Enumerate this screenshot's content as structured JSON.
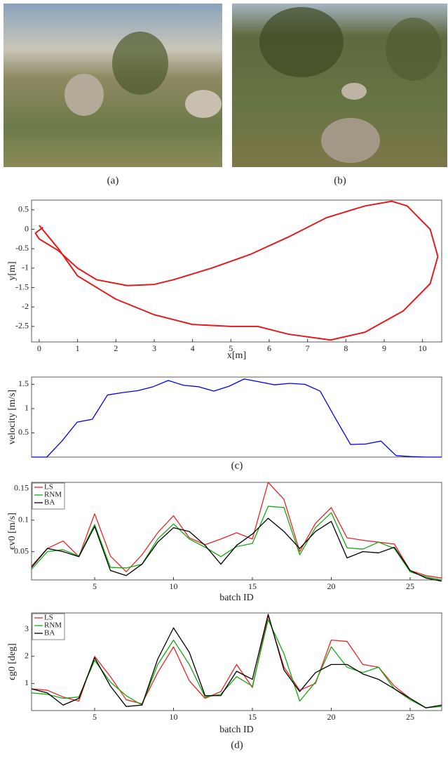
{
  "figure": {
    "captions": [
      "(a)",
      "(b)",
      "(c)",
      "(d)"
    ]
  },
  "chart_data": [
    {
      "type": "line",
      "xlabel": "x[m]",
      "ylabel": "y[m]",
      "x": [
        0,
        0.5,
        1,
        2,
        3,
        4,
        5,
        5.7,
        6.5,
        7.6,
        8.5,
        9.5,
        10.2,
        10.4,
        10.2,
        9.6,
        9.2,
        8.5,
        7.5,
        6.5,
        5.5,
        4.5,
        3.5,
        3,
        2.3,
        1.5,
        1,
        0.5,
        0,
        -0.1,
        0.1
      ],
      "y": [
        0.1,
        -0.5,
        -1.2,
        -1.8,
        -2.2,
        -2.45,
        -2.5,
        -2.5,
        -2.7,
        -2.85,
        -2.65,
        -2.1,
        -1.4,
        -0.7,
        0,
        0.6,
        0.72,
        0.6,
        0.3,
        -0.2,
        -0.65,
        -1.0,
        -1.3,
        -1.42,
        -1.45,
        -1.3,
        -1.0,
        -0.55,
        -0.25,
        -0.1,
        0.05
      ],
      "color": "#e41a1c",
      "xlim": [
        -0.2,
        10.5
      ],
      "xticks": [
        0,
        1,
        2,
        3,
        4,
        5,
        6,
        7,
        8,
        9,
        10
      ],
      "ylim": [
        -2.9,
        0.75
      ],
      "yticks": [
        -2.5,
        -2,
        -1.5,
        -1,
        -0.5,
        0,
        0.5
      ]
    },
    {
      "type": "line",
      "ylabel": "velocity [m/s]",
      "categories": [
        null,
        null,
        null,
        null,
        null,
        null,
        null,
        null,
        null,
        null,
        null,
        null,
        null,
        null,
        null,
        null,
        null,
        null,
        null,
        null,
        null,
        null,
        null,
        null,
        null,
        null,
        null,
        null
      ],
      "values": [
        0,
        0,
        0.33,
        0.72,
        0.78,
        1.28,
        1.33,
        1.37,
        1.45,
        1.58,
        1.48,
        1.45,
        1.36,
        1.46,
        1.61,
        1.55,
        1.49,
        1.52,
        1.5,
        1.36,
        0.8,
        0.26,
        0.27,
        0.33,
        0.03,
        0.01,
        0,
        0
      ],
      "color": "#0000ee",
      "ylim": [
        0,
        1.65
      ],
      "yticks": [
        0.5,
        1,
        1.5
      ]
    },
    {
      "type": "line",
      "xlabel": "batch ID",
      "ylabel": "ϵv0 [m/s]",
      "x": [
        1,
        2,
        3,
        4,
        5,
        6,
        7,
        8,
        9,
        10,
        11,
        12,
        13,
        14,
        15,
        16,
        17,
        18,
        19,
        20,
        21,
        22,
        23,
        24,
        25,
        26,
        27
      ],
      "series": [
        {
          "name": "LS",
          "color": "#ee2222",
          "values": [
            0.027,
            0.055,
            0.067,
            0.042,
            0.11,
            0.043,
            0.018,
            0.045,
            0.08,
            0.107,
            0.072,
            0.061,
            0.07,
            0.08,
            0.07,
            0.16,
            0.133,
            0.05,
            0.095,
            0.12,
            0.072,
            0.068,
            0.065,
            0.062,
            0.02,
            0.012,
            0.008
          ]
        },
        {
          "name": "RNM",
          "color": "#11aa11",
          "values": [
            0.022,
            0.05,
            0.053,
            0.043,
            0.093,
            0.025,
            0.024,
            0.03,
            0.07,
            0.094,
            0.07,
            0.057,
            0.042,
            0.058,
            0.063,
            0.122,
            0.12,
            0.045,
            0.088,
            0.112,
            0.056,
            0.054,
            0.065,
            0.055,
            0.018,
            0.01,
            0.005
          ]
        },
        {
          "name": "BA",
          "color": "#000000",
          "values": [
            0.025,
            0.055,
            0.05,
            0.042,
            0.09,
            0.02,
            0.012,
            0.03,
            0.065,
            0.088,
            0.082,
            0.06,
            0.03,
            0.06,
            0.078,
            0.103,
            0.082,
            0.055,
            0.082,
            0.098,
            0.04,
            0.05,
            0.048,
            0.057,
            0.02,
            0.008,
            0.003
          ]
        }
      ],
      "xlim": [
        1,
        27
      ],
      "xticks": [
        5,
        10,
        15,
        20,
        25
      ],
      "ylim": [
        0.005,
        0.16
      ],
      "yticks": [
        0.05,
        0.1,
        0.15
      ]
    },
    {
      "type": "line",
      "xlabel": "batch ID",
      "ylabel": "ϵg0 [deg]",
      "x": [
        1,
        2,
        3,
        4,
        5,
        6,
        7,
        8,
        9,
        10,
        11,
        12,
        13,
        14,
        15,
        16,
        17,
        18,
        19,
        20,
        21,
        22,
        23,
        24,
        25,
        26,
        27
      ],
      "series": [
        {
          "name": "LS",
          "color": "#ee2222",
          "values": [
            0.8,
            0.75,
            0.5,
            0.35,
            2.0,
            1.25,
            0.4,
            0.25,
            1.4,
            2.35,
            1.1,
            0.45,
            0.7,
            1.7,
            0.85,
            3.5,
            1.6,
            0.75,
            1.0,
            2.6,
            2.55,
            1.7,
            1.6,
            0.9,
            0.45,
            0.1,
            0.2
          ]
        },
        {
          "name": "RNM",
          "color": "#11aa11",
          "values": [
            0.65,
            0.6,
            0.45,
            0.5,
            1.85,
            1.05,
            0.55,
            0.2,
            1.7,
            2.6,
            1.7,
            0.5,
            0.6,
            1.25,
            0.9,
            3.35,
            2.1,
            0.35,
            1.05,
            2.35,
            1.6,
            1.4,
            1.6,
            0.8,
            0.4,
            0.1,
            0.15
          ]
        },
        {
          "name": "BA",
          "color": "#000000",
          "values": [
            0.8,
            0.65,
            0.2,
            0.45,
            1.95,
            0.9,
            0.15,
            0.2,
            1.9,
            3.05,
            2.15,
            0.55,
            0.55,
            1.45,
            1.15,
            3.55,
            1.5,
            0.7,
            1.4,
            1.7,
            1.7,
            1.35,
            1.15,
            0.8,
            0.45,
            0.1,
            0.2
          ]
        }
      ],
      "xlim": [
        1,
        27
      ],
      "xticks": [
        5,
        10,
        15,
        20,
        25
      ],
      "ylim": [
        0,
        3.6
      ],
      "yticks": [
        1,
        2,
        3
      ]
    }
  ]
}
